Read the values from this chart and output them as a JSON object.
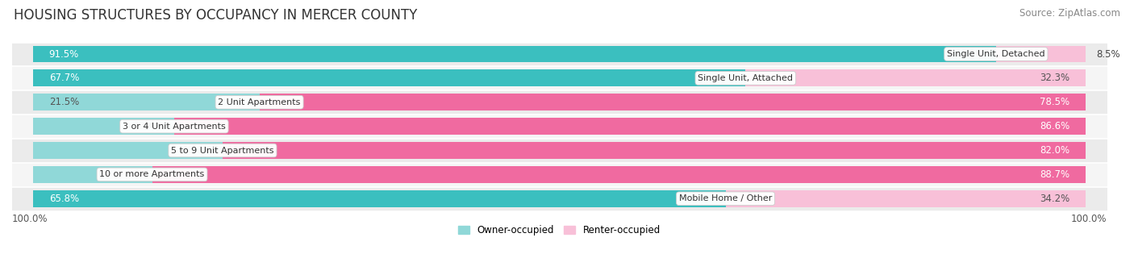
{
  "title": "HOUSING STRUCTURES BY OCCUPANCY IN MERCER COUNTY",
  "source": "Source: ZipAtlas.com",
  "categories": [
    "Single Unit, Detached",
    "Single Unit, Attached",
    "2 Unit Apartments",
    "3 or 4 Unit Apartments",
    "5 to 9 Unit Apartments",
    "10 or more Apartments",
    "Mobile Home / Other"
  ],
  "owner_pct": [
    91.5,
    67.7,
    21.5,
    13.4,
    18.0,
    11.3,
    65.8
  ],
  "renter_pct": [
    8.5,
    32.3,
    78.5,
    86.6,
    82.0,
    88.7,
    34.2
  ],
  "owner_color_dark": "#3bbfbf",
  "owner_color_light": "#90d8d8",
  "renter_color_dark": "#f06aa0",
  "renter_color_light": "#f8c0d8",
  "row_bg_alt": "#ebebeb",
  "row_bg_main": "#f5f5f5",
  "axis_label_left": "100.0%",
  "axis_label_right": "100.0%",
  "legend_owner": "Owner-occupied",
  "legend_renter": "Renter-occupied",
  "title_fontsize": 12,
  "source_fontsize": 8.5,
  "bar_label_fontsize": 8.5,
  "category_fontsize": 8,
  "legend_fontsize": 8.5
}
